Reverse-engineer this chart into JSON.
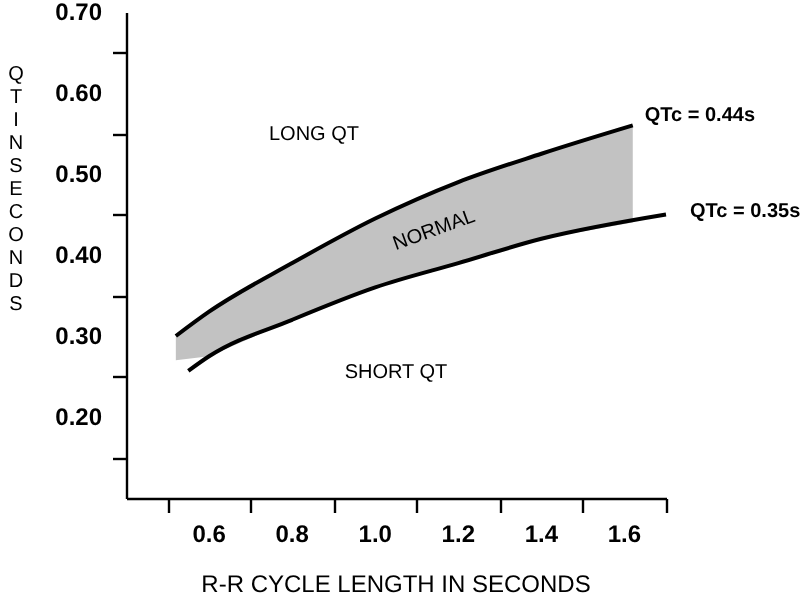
{
  "chart_data": {
    "type": "line",
    "xlabel": "R-R CYCLE LENGTH IN SECONDS",
    "ylabel": "QT IN SECONDS",
    "xlim": [
      0.4,
      1.7
    ],
    "ylim": [
      0.1,
      0.7
    ],
    "xticks": [
      {
        "value": 0.5,
        "label": null
      },
      0.6,
      {
        "value": 0.7,
        "label": null
      },
      0.8,
      {
        "value": 0.9,
        "label": null
      },
      {
        "value": 1.0,
        "label": "1.0"
      },
      {
        "value": 1.1,
        "label": null
      },
      1.2,
      {
        "value": 1.3,
        "label": null
      },
      1.4,
      {
        "value": 1.5,
        "label": null
      },
      1.6,
      {
        "value": 1.7,
        "label": null
      }
    ],
    "yticks": [
      {
        "value": 0.15,
        "label": null
      },
      {
        "value": 0.2,
        "label": "0.20"
      },
      {
        "value": 0.25,
        "label": null
      },
      {
        "value": 0.3,
        "label": "0.30"
      },
      {
        "value": 0.35,
        "label": null
      },
      {
        "value": 0.4,
        "label": "0.40"
      },
      {
        "value": 0.45,
        "label": null
      },
      {
        "value": 0.5,
        "label": "0.50"
      },
      {
        "value": 0.55,
        "label": null
      },
      {
        "value": 0.6,
        "label": "0.60"
      },
      {
        "value": 0.65,
        "label": null
      },
      {
        "value": 0.7,
        "label": "0.70"
      }
    ],
    "series": [
      {
        "name": "QTc = 0.44s",
        "color": "#000000",
        "x": [
          0.52,
          0.6,
          0.8,
          1.0,
          1.2,
          1.4,
          1.62
        ],
        "values": [
          0.3,
          0.33,
          0.39,
          0.445,
          0.49,
          0.525,
          0.56
        ],
        "lower": [
          0.27,
          0.275,
          0.32,
          0.36,
          0.39,
          0.42,
          0.44
        ],
        "upper": [
          0.3,
          0.33,
          0.39,
          0.445,
          0.49,
          0.525,
          0.56
        ]
      },
      {
        "name": "QTc = 0.35s",
        "color": "#000000",
        "x": [
          0.55,
          0.6,
          0.8,
          1.0,
          1.2,
          1.4,
          1.7
        ],
        "values": [
          0.257,
          0.275,
          0.32,
          0.36,
          0.39,
          0.42,
          0.45
        ]
      }
    ],
    "annotations": [
      "LONG QT",
      "SHORT QT",
      "NORMAL"
    ],
    "grid": false,
    "marker": "none",
    "line_style": "solid"
  }
}
